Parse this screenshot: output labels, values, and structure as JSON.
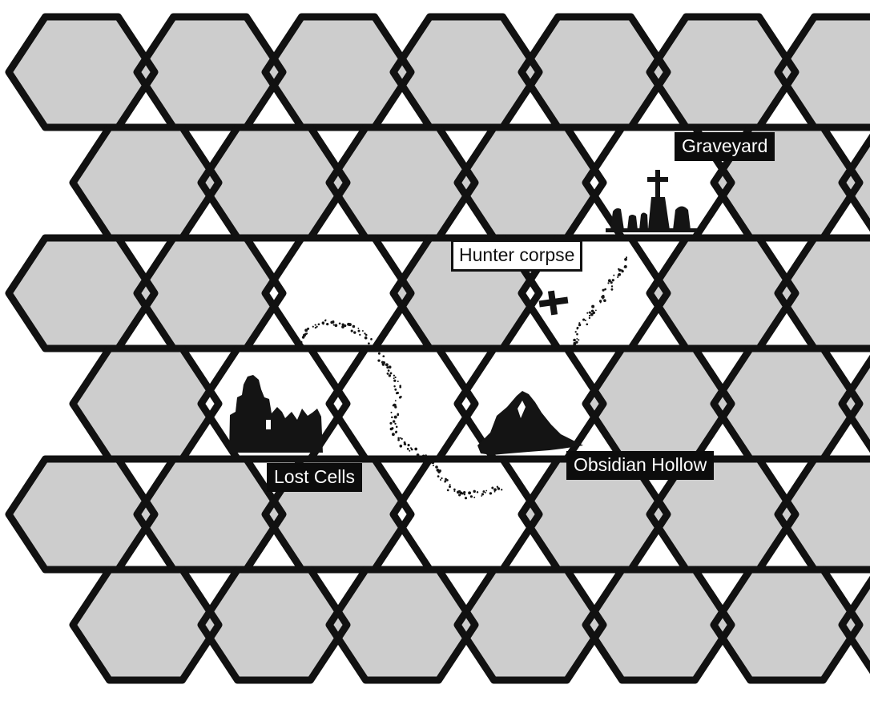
{
  "map": {
    "grid": "hex-flat-top",
    "columns": 7,
    "rows": 6,
    "colors": {
      "unexplored_fill": "#cdcdcd",
      "revealed_fill": "#ffffff",
      "outline": "#111111",
      "label_dark_bg": "#0c0c0c",
      "label_dark_text": "#ffffff"
    },
    "revealed_hexes": [
      {
        "col": 2,
        "row": 2
      },
      {
        "col": 1,
        "row": 3
      },
      {
        "col": 2,
        "row": 3
      },
      {
        "col": 3,
        "row": 3
      },
      {
        "col": 3,
        "row": 4
      },
      {
        "col": 4,
        "row": 2
      },
      {
        "col": 4,
        "row": 1
      }
    ],
    "trail": "dotted-path",
    "locations": [
      {
        "name": "Graveyard",
        "icon": "graveyard-icon"
      },
      {
        "name": "Hunter corpse",
        "icon": "cross-marker-icon"
      },
      {
        "name": "Lost Cells",
        "icon": "ruins-icon"
      },
      {
        "name": "Obsidian Hollow",
        "icon": "mountain-icon"
      }
    ]
  }
}
